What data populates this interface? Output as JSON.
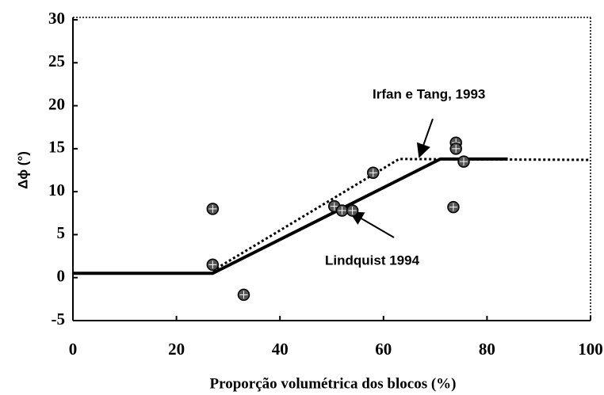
{
  "chart_data": {
    "type": "scatter",
    "xlabel": "Proporção volumétrica dos blocos (%)",
    "ylabel": "Δϕ (°)",
    "xlim": [
      0,
      100
    ],
    "xticks": [
      0,
      20,
      40,
      60,
      80,
      100
    ],
    "ylim": [
      -5,
      30
    ],
    "yticks": [
      -5,
      0,
      5,
      10,
      15,
      20,
      25,
      30
    ],
    "points": {
      "color": "#555555",
      "x": [
        27,
        27,
        33,
        50.5,
        52,
        54,
        58,
        73.5,
        74,
        74,
        75.5
      ],
      "values": [
        8,
        1.5,
        -2,
        8.3,
        7.8,
        7.8,
        12.2,
        8.2,
        15.7,
        15,
        13.5
      ]
    },
    "series": [
      {
        "name": "Lindquist 1994",
        "style": "solid",
        "color": "#000000",
        "x": [
          0,
          27,
          71,
          84
        ],
        "values": [
          0.5,
          0.5,
          13.8,
          13.8
        ]
      },
      {
        "name": "Irfan e Tang, 1993",
        "style": "dotted",
        "color": "#000000",
        "x": [
          27,
          63,
          100
        ],
        "values": [
          0.8,
          13.8,
          13.7
        ]
      }
    ]
  }
}
